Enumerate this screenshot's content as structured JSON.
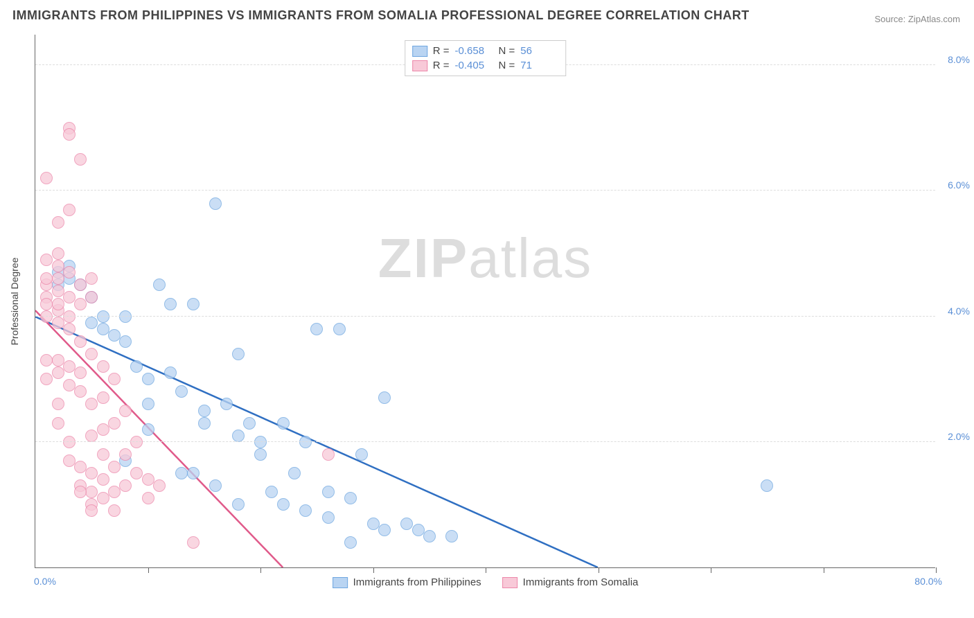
{
  "title": "IMMIGRANTS FROM PHILIPPINES VS IMMIGRANTS FROM SOMALIA PROFESSIONAL DEGREE CORRELATION CHART",
  "source_label": "Source: ",
  "source_value": "ZipAtlas.com",
  "watermark_a": "ZIP",
  "watermark_b": "atlas",
  "y_title": "Professional Degree",
  "xlim": [
    0,
    80
  ],
  "ylim": [
    0,
    8.5
  ],
  "x_ticks": [
    10,
    20,
    30,
    40,
    50,
    60,
    70,
    80
  ],
  "y_gridlines": [
    2,
    4,
    6,
    8
  ],
  "y_tick_labels": [
    "2.0%",
    "4.0%",
    "6.0%",
    "8.0%"
  ],
  "x_axis_min_label": "0.0%",
  "x_axis_max_label": "80.0%",
  "series": [
    {
      "name": "Immigrants from Philippines",
      "color_fill": "#b9d4f2",
      "color_stroke": "#6ea6e0",
      "line_color": "#2f6fc2",
      "marker_radius": 9,
      "r_label": "R  =",
      "r_value": "-0.658",
      "n_label": "N  =",
      "n_value": "56",
      "trend": {
        "x1": 0,
        "y1": 4.0,
        "x2": 50,
        "y2": 0
      },
      "points": [
        [
          2,
          4.7
        ],
        [
          2,
          4.5
        ],
        [
          3,
          4.6
        ],
        [
          3,
          4.8
        ],
        [
          4,
          4.5
        ],
        [
          5,
          4.3
        ],
        [
          5,
          3.9
        ],
        [
          6,
          3.8
        ],
        [
          6,
          4.0
        ],
        [
          7,
          3.7
        ],
        [
          8,
          3.6
        ],
        [
          8,
          4.0
        ],
        [
          9,
          3.2
        ],
        [
          10,
          3.0
        ],
        [
          10,
          2.6
        ],
        [
          11,
          4.5
        ],
        [
          12,
          4.2
        ],
        [
          12,
          3.1
        ],
        [
          13,
          2.8
        ],
        [
          13,
          1.5
        ],
        [
          14,
          4.2
        ],
        [
          15,
          2.5
        ],
        [
          15,
          2.3
        ],
        [
          16,
          5.8
        ],
        [
          17,
          2.6
        ],
        [
          18,
          2.1
        ],
        [
          18,
          3.4
        ],
        [
          19,
          2.3
        ],
        [
          20,
          2.0
        ],
        [
          20,
          1.8
        ],
        [
          21,
          1.2
        ],
        [
          22,
          2.3
        ],
        [
          22,
          1.0
        ],
        [
          23,
          1.5
        ],
        [
          24,
          2.0
        ],
        [
          25,
          3.8
        ],
        [
          26,
          1.2
        ],
        [
          27,
          3.8
        ],
        [
          28,
          1.1
        ],
        [
          29,
          1.8
        ],
        [
          30,
          0.7
        ],
        [
          31,
          2.7
        ],
        [
          31,
          0.6
        ],
        [
          33,
          0.7
        ],
        [
          34,
          0.6
        ],
        [
          35,
          0.5
        ],
        [
          37,
          0.5
        ],
        [
          28,
          0.4
        ],
        [
          65,
          1.3
        ],
        [
          8,
          1.7
        ],
        [
          10,
          2.2
        ],
        [
          14,
          1.5
        ],
        [
          16,
          1.3
        ],
        [
          18,
          1.0
        ],
        [
          24,
          0.9
        ],
        [
          26,
          0.8
        ]
      ]
    },
    {
      "name": "Immigrants from Somalia",
      "color_fill": "#f8c9d8",
      "color_stroke": "#ec87aa",
      "line_color": "#e05a8a",
      "marker_radius": 9,
      "r_label": "R  =",
      "r_value": "-0.405",
      "n_label": "N  =",
      "n_value": "71",
      "trend": {
        "x1": 0,
        "y1": 4.1,
        "x2": 22,
        "y2": 0
      },
      "points": [
        [
          1,
          6.2
        ],
        [
          1,
          4.9
        ],
        [
          1,
          4.5
        ],
        [
          1,
          4.3
        ],
        [
          1,
          4.6
        ],
        [
          2,
          5.5
        ],
        [
          2,
          5.0
        ],
        [
          2,
          4.8
        ],
        [
          2,
          4.4
        ],
        [
          2,
          4.1
        ],
        [
          2,
          3.9
        ],
        [
          2,
          3.3
        ],
        [
          3,
          7.0
        ],
        [
          3,
          6.9
        ],
        [
          3,
          5.7
        ],
        [
          3,
          4.7
        ],
        [
          3,
          3.8
        ],
        [
          3,
          3.2
        ],
        [
          3,
          2.9
        ],
        [
          4,
          6.5
        ],
        [
          4,
          4.5
        ],
        [
          4,
          4.2
        ],
        [
          4,
          3.6
        ],
        [
          4,
          3.1
        ],
        [
          4,
          2.8
        ],
        [
          4,
          1.6
        ],
        [
          4,
          1.3
        ],
        [
          5,
          4.6
        ],
        [
          5,
          4.3
        ],
        [
          5,
          3.4
        ],
        [
          5,
          2.6
        ],
        [
          5,
          2.1
        ],
        [
          5,
          1.5
        ],
        [
          5,
          1.2
        ],
        [
          5,
          1.0
        ],
        [
          6,
          3.2
        ],
        [
          6,
          2.7
        ],
        [
          6,
          2.2
        ],
        [
          6,
          1.8
        ],
        [
          6,
          1.4
        ],
        [
          6,
          1.1
        ],
        [
          7,
          3.0
        ],
        [
          7,
          2.3
        ],
        [
          7,
          1.6
        ],
        [
          7,
          1.2
        ],
        [
          7,
          0.9
        ],
        [
          8,
          2.5
        ],
        [
          8,
          1.8
        ],
        [
          8,
          1.3
        ],
        [
          9,
          2.0
        ],
        [
          9,
          1.5
        ],
        [
          10,
          1.4
        ],
        [
          10,
          1.1
        ],
        [
          11,
          1.3
        ],
        [
          14,
          0.4
        ],
        [
          26,
          1.8
        ],
        [
          1,
          4.0
        ],
        [
          1,
          4.2
        ],
        [
          2,
          4.6
        ],
        [
          2,
          4.2
        ],
        [
          3,
          4.3
        ],
        [
          3,
          4.0
        ],
        [
          1,
          3.0
        ],
        [
          1,
          3.3
        ],
        [
          2,
          3.1
        ],
        [
          2,
          2.6
        ],
        [
          2,
          2.3
        ],
        [
          3,
          2.0
        ],
        [
          3,
          1.7
        ],
        [
          4,
          1.2
        ],
        [
          5,
          0.9
        ]
      ]
    }
  ]
}
